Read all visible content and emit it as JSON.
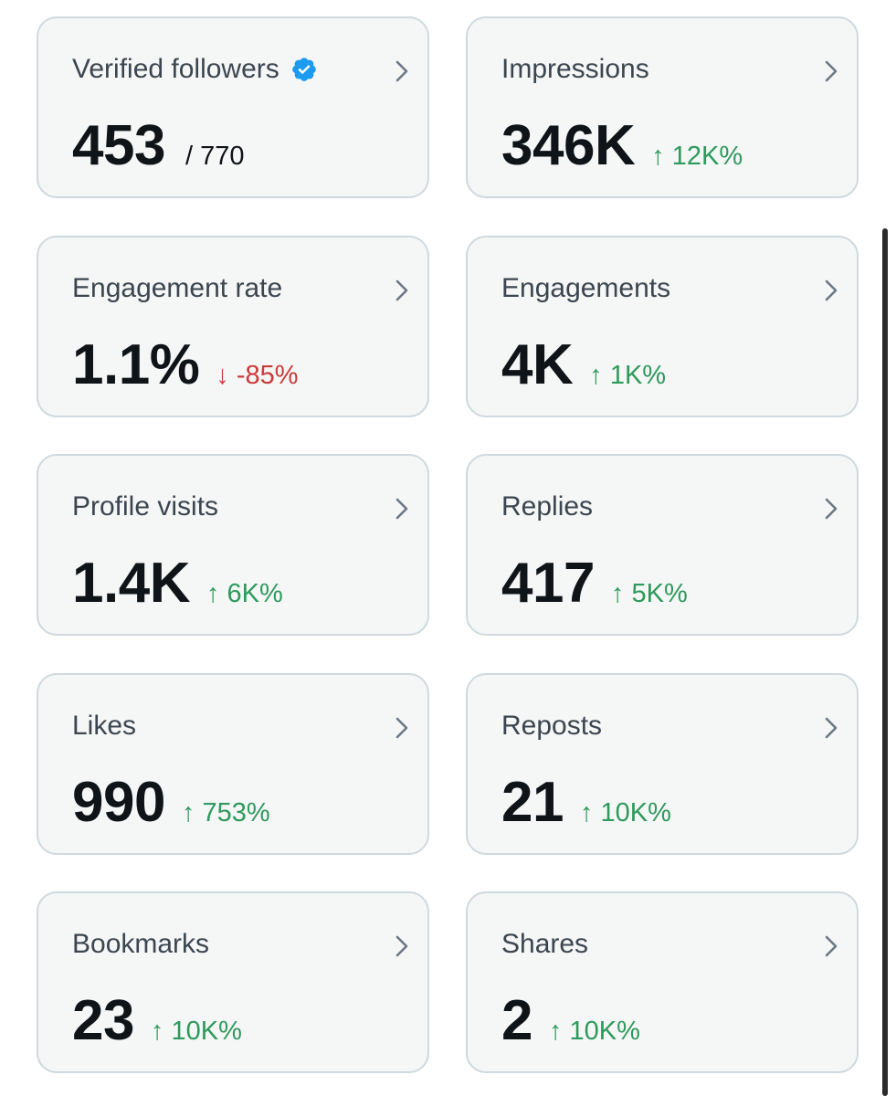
{
  "cards": [
    {
      "label": "Verified followers",
      "value": "453",
      "total": "/ 770",
      "verified_badge_icon": "verified-badge-icon",
      "chevron_icon": "chevron-right-icon"
    },
    {
      "label": "Impressions",
      "value": "346K",
      "change": "↑ 12K%",
      "direction": "up",
      "chevron_icon": "chevron-right-icon"
    },
    {
      "label": "Engagement rate",
      "value": "1.1%",
      "change": "↓ -85%",
      "direction": "down",
      "chevron_icon": "chevron-right-icon"
    },
    {
      "label": "Engagements",
      "value": "4K",
      "change": "↑ 1K%",
      "direction": "up",
      "chevron_icon": "chevron-right-icon"
    },
    {
      "label": "Profile visits",
      "value": "1.4K",
      "change": "↑ 6K%",
      "direction": "up",
      "chevron_icon": "chevron-right-icon"
    },
    {
      "label": "Replies",
      "value": "417",
      "change": "↑ 5K%",
      "direction": "up",
      "chevron_icon": "chevron-right-icon"
    },
    {
      "label": "Likes",
      "value": "990",
      "change": "↑ 753%",
      "direction": "up",
      "chevron_icon": "chevron-right-icon"
    },
    {
      "label": "Reposts",
      "value": "21",
      "change": "↑ 10K%",
      "direction": "up",
      "chevron_icon": "chevron-right-icon"
    },
    {
      "label": "Bookmarks",
      "value": "23",
      "change": "↑ 10K%",
      "direction": "up",
      "chevron_icon": "chevron-right-icon"
    },
    {
      "label": "Shares",
      "value": "2",
      "change": "↑ 10K%",
      "direction": "up",
      "chevron_icon": "chevron-right-icon"
    }
  ],
  "colors": {
    "card_background": "#f5f6f6",
    "card_border": "#cfd9de",
    "positive": "#2e9a5c",
    "negative": "#cc3a3a",
    "verified_blue": "#1d9bf0",
    "text_primary": "#0f1419",
    "text_label": "#3c4650"
  }
}
